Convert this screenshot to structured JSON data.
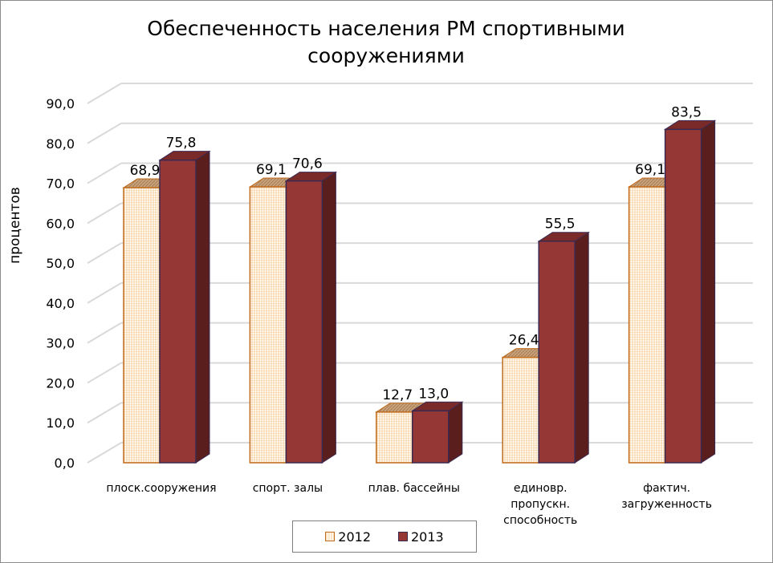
{
  "chart_data": {
    "type": "bar",
    "title": "Обеспеченность населения РМ спортивными сооружениями",
    "title_lines": [
      "Обеспеченность населения РМ спортивными",
      "сооружениями"
    ],
    "ylabel": "процентов",
    "xlabel": "",
    "ylim": [
      0,
      90
    ],
    "yticks": [
      "0,0",
      "10,0",
      "20,0",
      "30,0",
      "40,0",
      "50,0",
      "60,0",
      "70,0",
      "80,0",
      "90,0"
    ],
    "grid": true,
    "legend_position": "bottom",
    "categories": [
      [
        "плоск.сооружения"
      ],
      [
        "спорт. залы"
      ],
      [
        "плав. бассейны"
      ],
      [
        "единовр.",
        "пропускн.",
        "способность"
      ],
      [
        "фактич.",
        "загруженность"
      ]
    ],
    "series": [
      {
        "name": "2012",
        "values": [
          68.9,
          69.1,
          12.7,
          26.4,
          69.1
        ],
        "labels": [
          "68,9",
          "69,1",
          "12,7",
          "26,4",
          "69,1"
        ],
        "color": "#fbe5c6",
        "edge": "#c06a1a"
      },
      {
        "name": "2013",
        "values": [
          75.8,
          70.6,
          13.0,
          55.5,
          83.5
        ],
        "labels": [
          "75,8",
          "70,6",
          "13,0",
          "55,5",
          "83,5"
        ],
        "color": "#953735",
        "edge": "#3a2a52"
      }
    ]
  },
  "colors": {
    "grid": "#d9d9d9",
    "bar2012_front": "#fbe5c6",
    "bar2012_top": "#c9a27a",
    "bar2013_front": "#953735",
    "bar2013_top": "#7a2a28",
    "bar2013_side": "#5a1f1d"
  }
}
